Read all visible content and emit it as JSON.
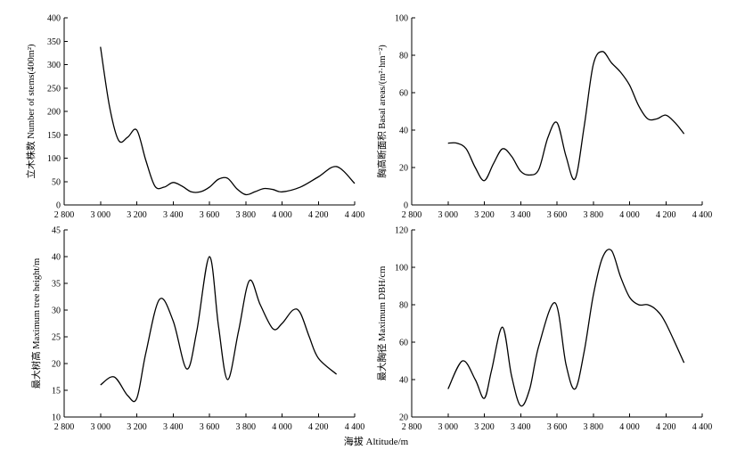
{
  "figure": {
    "xlabel": "海拔 Altitude/m"
  },
  "chart_data": [
    {
      "type": "line",
      "ylabel": "立木株数 Number of stems(400m²)",
      "xlim": [
        2800,
        4400
      ],
      "ylim": [
        0,
        400
      ],
      "xticks": [
        2800,
        3000,
        3200,
        3400,
        3600,
        3800,
        4000,
        4200,
        4400
      ],
      "xtick_labels": [
        "2 800",
        "3 000",
        "3 200",
        "3 400",
        "3 600",
        "3 800",
        "4 000",
        "4 200",
        "4 400"
      ],
      "yticks": [
        0,
        50,
        100,
        150,
        200,
        250,
        300,
        350,
        400
      ],
      "ytick_labels": [
        "0",
        "50",
        "100",
        "150",
        "200",
        "250",
        "300",
        "350",
        "400"
      ],
      "x": [
        3000,
        3050,
        3100,
        3150,
        3200,
        3250,
        3300,
        3350,
        3400,
        3450,
        3500,
        3550,
        3600,
        3650,
        3700,
        3750,
        3800,
        3850,
        3900,
        3950,
        4000,
        4100,
        4200,
        4300,
        4400
      ],
      "y": [
        338,
        210,
        138,
        145,
        160,
        95,
        40,
        38,
        48,
        40,
        28,
        28,
        38,
        55,
        57,
        35,
        22,
        28,
        35,
        33,
        28,
        38,
        60,
        82,
        46
      ]
    },
    {
      "type": "line",
      "ylabel": "胸高断面积 Basal areas/(m²·hm⁻²)",
      "xlim": [
        2800,
        4400
      ],
      "ylim": [
        0,
        100
      ],
      "xticks": [
        2800,
        3000,
        3200,
        3400,
        3600,
        3800,
        4000,
        4200,
        4400
      ],
      "xtick_labels": [
        "2 800",
        "3 000",
        "3 200",
        "3 400",
        "3 600",
        "3 800",
        "4 000",
        "4 200",
        "4 400"
      ],
      "yticks": [
        0,
        20,
        40,
        60,
        80,
        100
      ],
      "ytick_labels": [
        "0",
        "20",
        "40",
        "60",
        "80",
        "100"
      ],
      "x": [
        3000,
        3050,
        3100,
        3150,
        3200,
        3250,
        3300,
        3350,
        3400,
        3450,
        3500,
        3550,
        3600,
        3650,
        3700,
        3750,
        3800,
        3850,
        3900,
        3950,
        4000,
        4050,
        4100,
        4150,
        4200,
        4250,
        4300
      ],
      "y": [
        33,
        33,
        30,
        20,
        13,
        22,
        30,
        26,
        18,
        16,
        19,
        36,
        44,
        26,
        14,
        42,
        75,
        82,
        76,
        71,
        64,
        53,
        46,
        46,
        48,
        44,
        38
      ]
    },
    {
      "type": "line",
      "ylabel": "最大树高 Maximum tree height/m",
      "xlim": [
        2800,
        4400
      ],
      "ylim": [
        10,
        45
      ],
      "xticks": [
        2800,
        3000,
        3200,
        3400,
        3600,
        3800,
        4000,
        4200,
        4400
      ],
      "xtick_labels": [
        "2 800",
        "3 000",
        "3 200",
        "3 400",
        "3 600",
        "3 800",
        "4 000",
        "4 200",
        "4 400"
      ],
      "yticks": [
        10,
        15,
        20,
        25,
        30,
        35,
        40,
        45
      ],
      "ytick_labels": [
        "10",
        "15",
        "20",
        "25",
        "30",
        "35",
        "40",
        "45"
      ],
      "x": [
        3000,
        3075,
        3150,
        3200,
        3250,
        3325,
        3400,
        3475,
        3530,
        3600,
        3650,
        3700,
        3760,
        3820,
        3880,
        3950,
        4000,
        4060,
        4100,
        4150,
        4200,
        4300
      ],
      "y": [
        16,
        17.5,
        14,
        13.5,
        22,
        32,
        28,
        19,
        26,
        40,
        27,
        17,
        26,
        35.5,
        31,
        26.5,
        27.5,
        30,
        29.5,
        25,
        21,
        18
      ]
    },
    {
      "type": "line",
      "ylabel": "最大胸径 Maximum DBH/cm",
      "xlim": [
        2800,
        4400
      ],
      "ylim": [
        20,
        120
      ],
      "xticks": [
        2800,
        3000,
        3200,
        3400,
        3600,
        3800,
        4000,
        4200,
        4400
      ],
      "xtick_labels": [
        "2 800",
        "3 000",
        "3 200",
        "3 400",
        "3 600",
        "3 800",
        "4 000",
        "4 200",
        "4 400"
      ],
      "yticks": [
        20,
        40,
        60,
        80,
        100,
        120
      ],
      "ytick_labels": [
        "20",
        "40",
        "60",
        "80",
        "100",
        "120"
      ],
      "x": [
        3000,
        3080,
        3150,
        3200,
        3240,
        3300,
        3350,
        3400,
        3450,
        3500,
        3590,
        3650,
        3700,
        3750,
        3800,
        3850,
        3900,
        3950,
        4000,
        4050,
        4100,
        4150,
        4200,
        4300
      ],
      "y": [
        35,
        50,
        40,
        30,
        45,
        68,
        42,
        26,
        35,
        58,
        81,
        48,
        35,
        55,
        85,
        105,
        109,
        95,
        84,
        80,
        80,
        77,
        70,
        49
      ]
    }
  ]
}
